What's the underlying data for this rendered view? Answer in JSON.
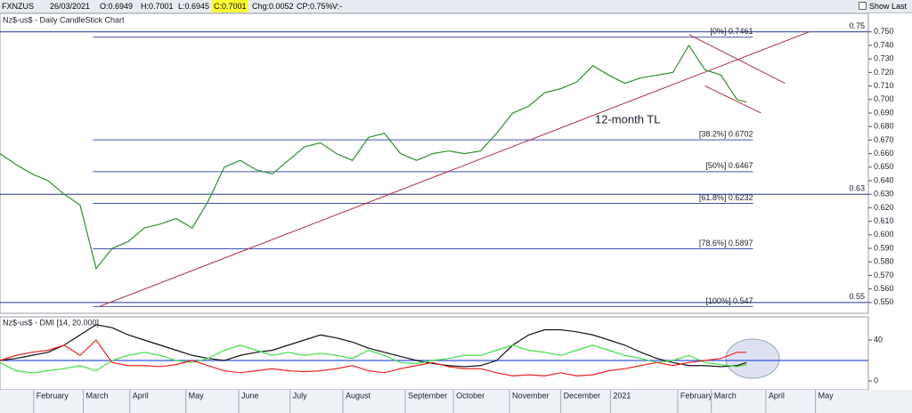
{
  "header": {
    "items": [
      "FXNZUS",
      "26/03/2021",
      "O:0.6949",
      "H:0.7001",
      "L:0.6945",
      "C:0.7001",
      "Chg:0.0052",
      "CP:0.75%",
      "V:-"
    ],
    "show_last": "Show Last"
  },
  "chart_data": [
    {
      "type": "line",
      "title": "Nz$-us$ - Daily CandleStick Chart",
      "color": "#2f8f2f",
      "x": [
        0,
        1,
        2,
        3,
        4,
        5,
        6,
        7,
        8,
        9,
        10,
        11,
        12,
        13,
        14,
        15,
        16,
        17,
        18,
        19,
        20,
        21,
        22,
        23,
        24,
        25,
        26,
        27,
        28,
        29,
        30,
        31,
        32,
        33,
        34,
        35,
        36,
        37,
        38,
        39,
        40,
        41,
        42,
        43,
        44,
        45,
        46,
        46.6
      ],
      "values": [
        0.66,
        0.652,
        0.645,
        0.64,
        0.63,
        0.622,
        0.575,
        0.59,
        0.595,
        0.605,
        0.608,
        0.612,
        0.605,
        0.625,
        0.65,
        0.655,
        0.648,
        0.645,
        0.655,
        0.665,
        0.668,
        0.66,
        0.655,
        0.672,
        0.675,
        0.66,
        0.655,
        0.66,
        0.662,
        0.66,
        0.662,
        0.675,
        0.69,
        0.695,
        0.705,
        0.708,
        0.713,
        0.725,
        0.718,
        0.712,
        0.716,
        0.718,
        0.72,
        0.74,
        0.722,
        0.718,
        0.7,
        0.698
      ],
      "xlim": [
        0,
        54.2
      ],
      "ylim": [
        0.542,
        0.763
      ],
      "xticks": [
        {
          "value": 2.1,
          "label": "February"
        },
        {
          "value": 5.2,
          "label": "March"
        },
        {
          "value": 8.1,
          "label": "April"
        },
        {
          "value": 11.6,
          "label": "May"
        },
        {
          "value": 14.9,
          "label": "June"
        },
        {
          "value": 18.1,
          "label": "July"
        },
        {
          "value": 21.4,
          "label": "August"
        },
        {
          "value": 25.3,
          "label": "September"
        },
        {
          "value": 28.3,
          "label": "October"
        },
        {
          "value": 31.8,
          "label": "November"
        },
        {
          "value": 35,
          "label": "December"
        },
        {
          "value": 38.1,
          "label": "2021"
        },
        {
          "value": 42.3,
          "label": "February"
        },
        {
          "value": 44.4,
          "label": "March"
        },
        {
          "value": 47.8,
          "label": "April"
        },
        {
          "value": 50.9,
          "label": "May"
        }
      ],
      "yticks": [
        {
          "value": 0.55,
          "label": "0.550"
        },
        {
          "value": 0.56,
          "label": "0.560"
        },
        {
          "value": 0.57,
          "label": "0.570"
        },
        {
          "value": 0.58,
          "label": "0.580"
        },
        {
          "value": 0.59,
          "label": "0.590"
        },
        {
          "value": 0.6,
          "label": "0.600"
        },
        {
          "value": 0.61,
          "label": "0.610"
        },
        {
          "value": 0.62,
          "label": "0.620"
        },
        {
          "value": 0.63,
          "label": "0.630"
        },
        {
          "value": 0.64,
          "label": "0.640"
        },
        {
          "value": 0.65,
          "label": "0.650"
        },
        {
          "value": 0.66,
          "label": "0.660"
        },
        {
          "value": 0.67,
          "label": "0.670"
        },
        {
          "value": 0.68,
          "label": "0.680"
        },
        {
          "value": 0.69,
          "label": "0.690"
        },
        {
          "value": 0.7,
          "label": "0.700"
        },
        {
          "value": 0.71,
          "label": "0.710"
        },
        {
          "value": 0.72,
          "label": "0.720"
        },
        {
          "value": 0.73,
          "label": "0.730"
        },
        {
          "value": 0.74,
          "label": "0.740"
        },
        {
          "value": 0.75,
          "label": "0.750"
        }
      ],
      "levels": [
        0.75,
        0.63,
        0.55
      ],
      "fib_x": [
        5.8,
        47
      ],
      "fib_levels": [
        {
          "value": 0.7461,
          "label": "[0%] 0.7461"
        },
        {
          "value": 0.6702,
          "label": "[38.2%] 0.6702"
        },
        {
          "value": 0.6467,
          "label": "[50%] 0.6467"
        },
        {
          "value": 0.6232,
          "label": "[61.8%] 0.6232"
        },
        {
          "value": 0.5897,
          "label": "[78.6%] 0.5897"
        },
        {
          "value": 0.547,
          "label": "[100%] 0.547"
        }
      ],
      "trendlines": [
        {
          "x": [
            6.2,
            50.5
          ],
          "y": [
            0.547,
            0.75
          ]
        },
        {
          "x": [
            43,
            49
          ],
          "y": [
            0.748,
            0.712
          ]
        },
        {
          "x": [
            44,
            47.5
          ],
          "y": [
            0.71,
            0.69
          ]
        }
      ],
      "annotation": "12-month TL"
    },
    {
      "type": "dmi",
      "title": "Nz$-us$ - DMI [14, 20.000]",
      "xlim": [
        0,
        54.2
      ],
      "ylim": [
        -7.8,
        62.6
      ],
      "yticks": [
        40,
        0
      ],
      "level": 20,
      "level_color": "#3355dd",
      "x": [
        0,
        1,
        2,
        3,
        4,
        5,
        6,
        7,
        8,
        9,
        10,
        11,
        12,
        13,
        14,
        15,
        16,
        17,
        18,
        19,
        20,
        21,
        22,
        23,
        24,
        25,
        26,
        27,
        28,
        29,
        30,
        31,
        32,
        33,
        34,
        35,
        36,
        37,
        38,
        39,
        40,
        41,
        42,
        43,
        44,
        45,
        46,
        46.6
      ],
      "series": [
        {
          "color": "#111111",
          "values": [
            20,
            22,
            25,
            28,
            35,
            45,
            55,
            52,
            45,
            40,
            35,
            30,
            25,
            22,
            20,
            25,
            28,
            30,
            35,
            40,
            45,
            42,
            38,
            32,
            28,
            24,
            20,
            17,
            15,
            14,
            15,
            20,
            35,
            45,
            50,
            50,
            48,
            45,
            40,
            35,
            28,
            22,
            18,
            15,
            15,
            14,
            15,
            18
          ]
        },
        {
          "color": "#44dd44",
          "values": [
            18,
            10,
            8,
            10,
            12,
            15,
            10,
            20,
            25,
            28,
            25,
            20,
            18,
            22,
            30,
            35,
            30,
            25,
            28,
            25,
            27,
            25,
            22,
            30,
            25,
            18,
            17,
            20,
            22,
            25,
            25,
            30,
            35,
            30,
            28,
            25,
            30,
            35,
            30,
            25,
            22,
            18,
            20,
            25,
            18,
            16,
            14,
            16
          ]
        },
        {
          "color": "#ee2222",
          "values": [
            20,
            25,
            28,
            30,
            35,
            25,
            40,
            18,
            15,
            15,
            14,
            16,
            20,
            15,
            10,
            8,
            10,
            12,
            10,
            9,
            10,
            12,
            15,
            10,
            8,
            12,
            15,
            18,
            14,
            12,
            12,
            8,
            5,
            6,
            5,
            8,
            5,
            6,
            10,
            12,
            15,
            18,
            15,
            18,
            20,
            22,
            28,
            28
          ]
        }
      ]
    }
  ]
}
